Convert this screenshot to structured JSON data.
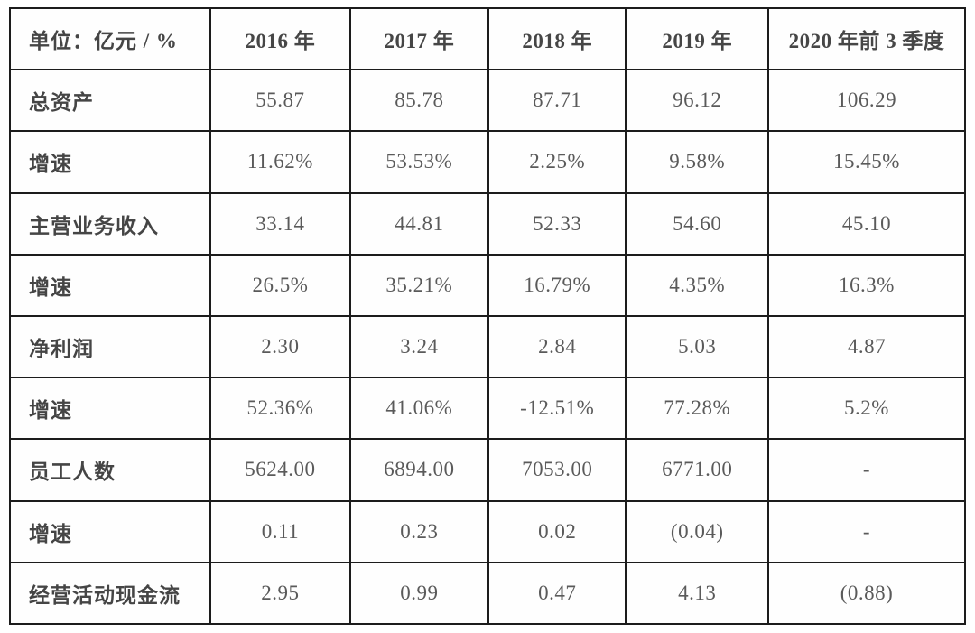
{
  "colors": {
    "border": "#1c1c1c",
    "label_text": "#454545",
    "value_text": "#5a5a5a",
    "background": "#ffffff"
  },
  "table": {
    "unit_label": "单位：亿元 / %",
    "columns": [
      "2016 年",
      "2017 年",
      "2018 年",
      "2019 年",
      "2020 年前 3 季度"
    ],
    "rows": [
      {
        "label": "总资产",
        "values": [
          "55.87",
          "85.78",
          "87.71",
          "96.12",
          "106.29"
        ]
      },
      {
        "label": "增速",
        "values": [
          "11.62%",
          "53.53%",
          "2.25%",
          "9.58%",
          "15.45%"
        ]
      },
      {
        "label": "主营业务收入",
        "values": [
          "33.14",
          "44.81",
          "52.33",
          "54.60",
          "45.10"
        ]
      },
      {
        "label": "增速",
        "values": [
          "26.5%",
          "35.21%",
          "16.79%",
          "4.35%",
          "16.3%"
        ]
      },
      {
        "label": "净利润",
        "values": [
          "2.30",
          "3.24",
          "2.84",
          "5.03",
          "4.87"
        ]
      },
      {
        "label": "增速",
        "values": [
          "52.36%",
          "41.06%",
          "-12.51%",
          "77.28%",
          "5.2%"
        ]
      },
      {
        "label": "员工人数",
        "values": [
          "5624.00",
          "6894.00",
          "7053.00",
          "6771.00",
          "-"
        ]
      },
      {
        "label": "增速",
        "values": [
          "0.11",
          "0.23",
          "0.02",
          "(0.04)",
          "-"
        ]
      },
      {
        "label": "经营活动现金流",
        "values": [
          "2.95",
          "0.99",
          "0.47",
          "4.13",
          "(0.88)"
        ]
      }
    ]
  },
  "chart_data": {
    "type": "table",
    "title": "单位：亿元 / %",
    "categories": [
      "2016 年",
      "2017 年",
      "2018 年",
      "2019 年",
      "2020 年前 3 季度"
    ],
    "series": [
      {
        "name": "总资产",
        "values": [
          55.87,
          85.78,
          87.71,
          96.12,
          106.29
        ]
      },
      {
        "name": "总资产增速(%)",
        "values": [
          11.62,
          53.53,
          2.25,
          9.58,
          15.45
        ]
      },
      {
        "name": "主营业务收入",
        "values": [
          33.14,
          44.81,
          52.33,
          54.6,
          45.1
        ]
      },
      {
        "name": "主营业务收入增速(%)",
        "values": [
          26.5,
          35.21,
          16.79,
          4.35,
          16.3
        ]
      },
      {
        "name": "净利润",
        "values": [
          2.3,
          3.24,
          2.84,
          5.03,
          4.87
        ]
      },
      {
        "name": "净利润增速(%)",
        "values": [
          52.36,
          41.06,
          -12.51,
          77.28,
          5.2
        ]
      },
      {
        "name": "员工人数",
        "values": [
          5624.0,
          6894.0,
          7053.0,
          6771.0,
          null
        ]
      },
      {
        "name": "员工人数增速",
        "values": [
          0.11,
          0.23,
          0.02,
          -0.04,
          null
        ]
      },
      {
        "name": "经营活动现金流",
        "values": [
          2.95,
          0.99,
          0.47,
          4.13,
          -0.88
        ]
      }
    ]
  }
}
